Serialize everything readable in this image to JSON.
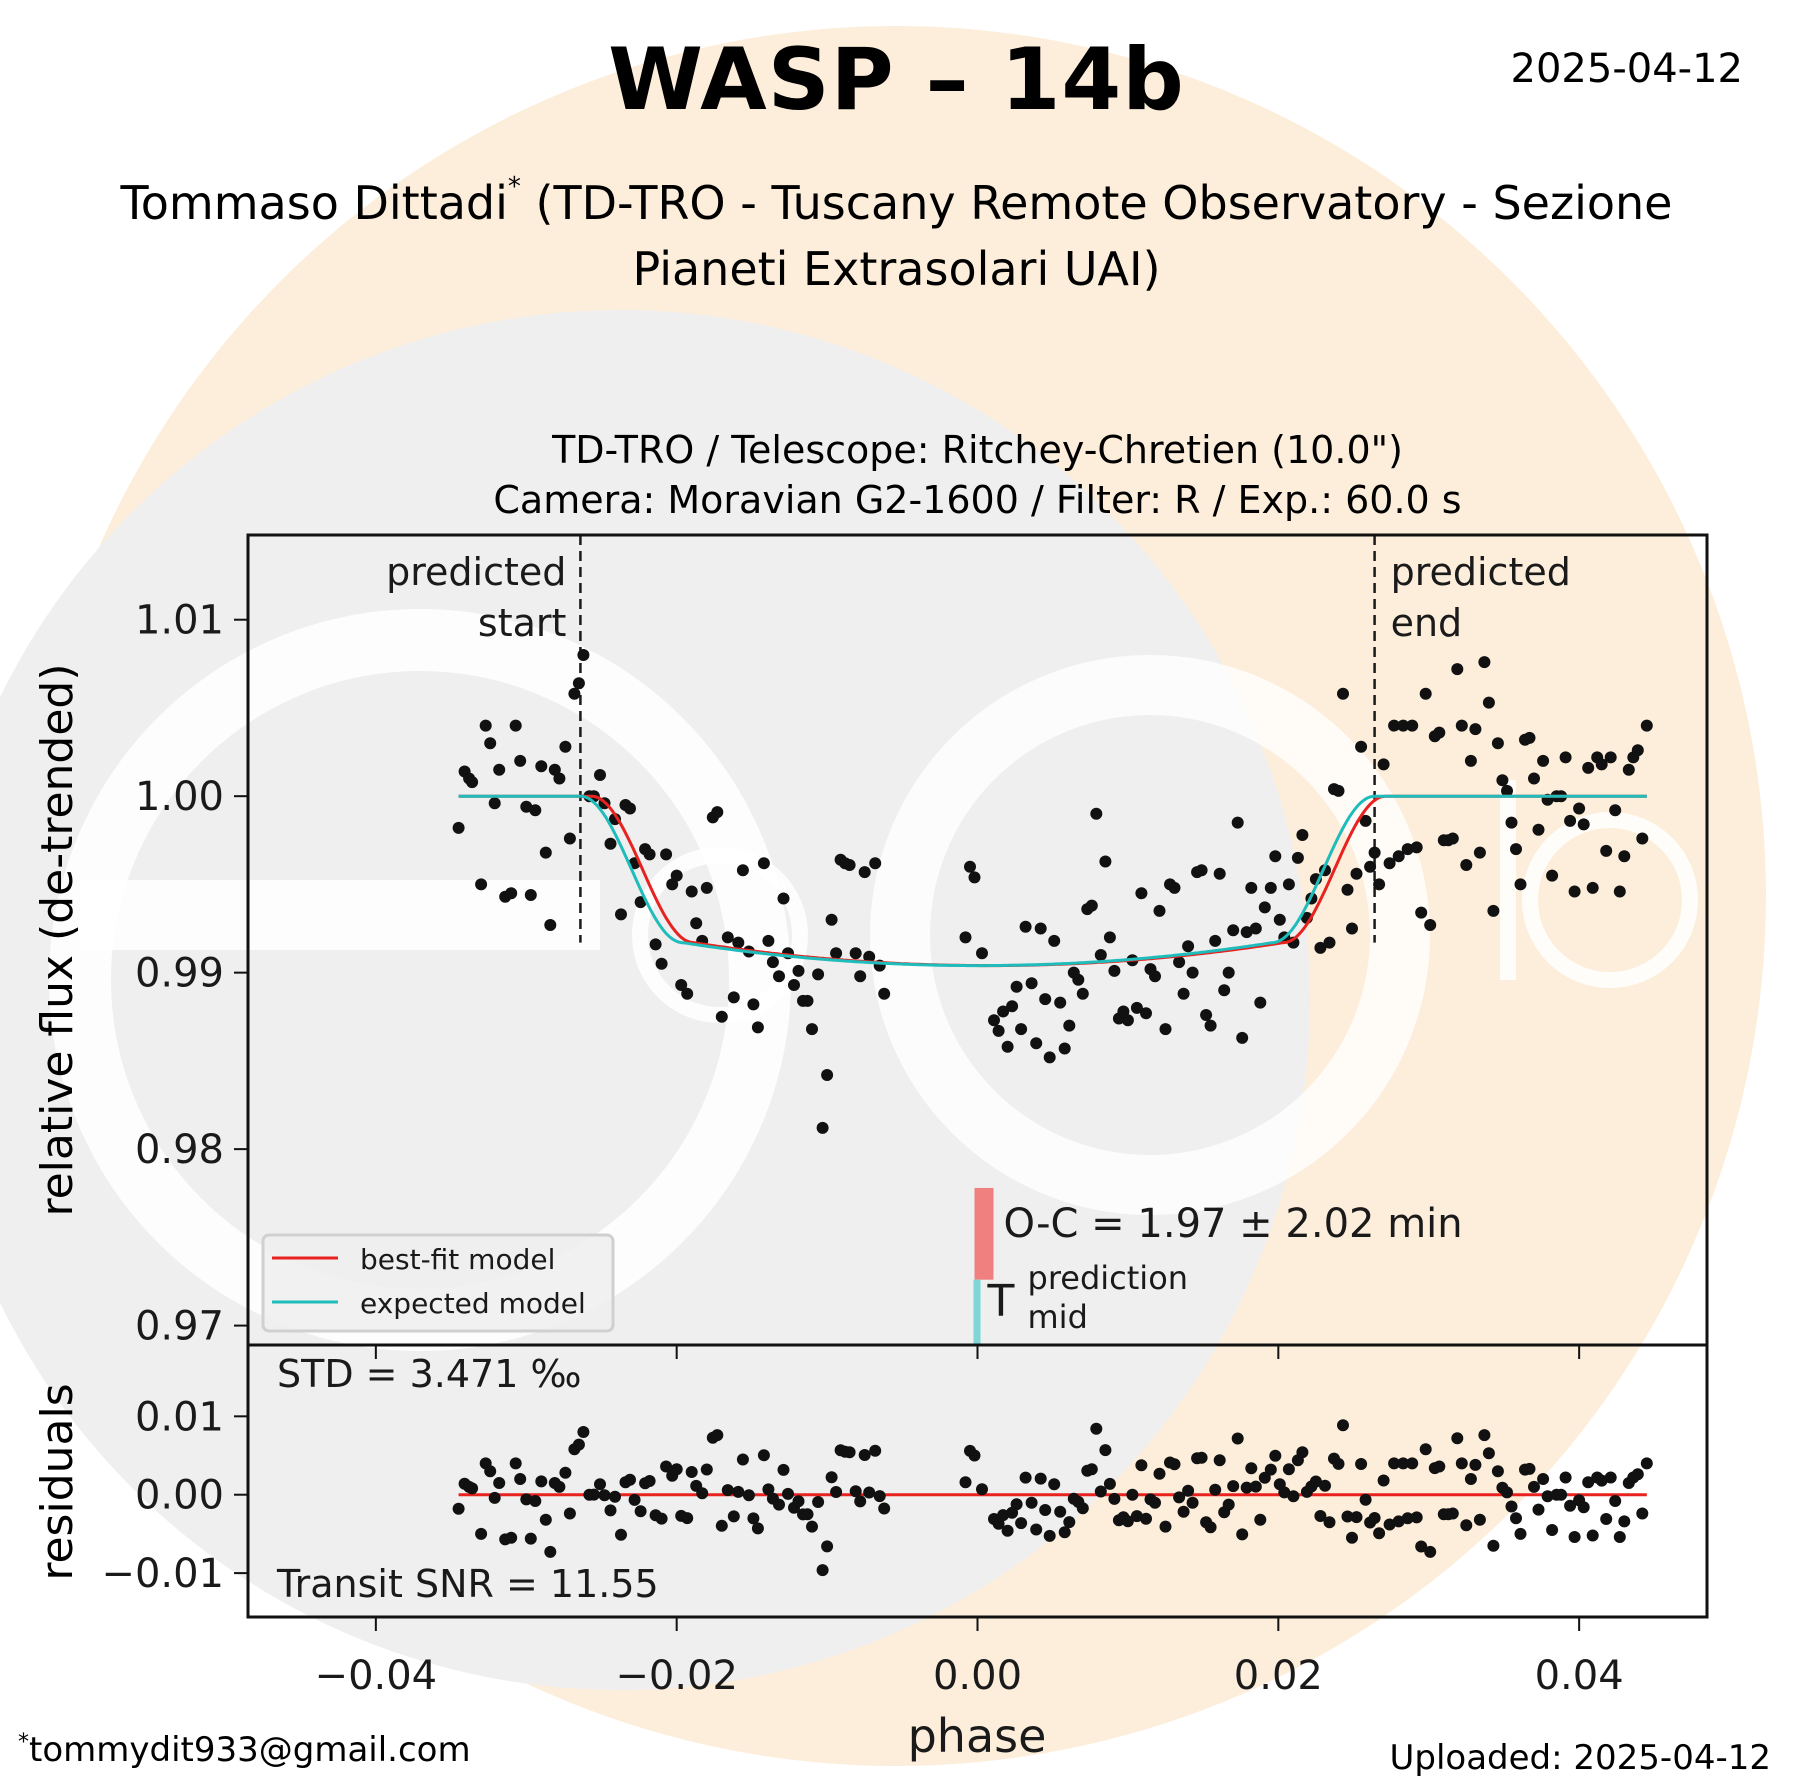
{
  "header": {
    "title": "WASP – 14b",
    "date": "2025-04-12",
    "observer_name": "Tommaso Dittadi",
    "observer_marker": "*",
    "observer_affiliation_line1": "(TD-TRO - Tuscany Remote Observatory - Sezione",
    "observer_affiliation_line2": "Pianeti Extrasolari UAI)",
    "subtitle_line1": "TD-TRO / Telescope: Ritchey-Chretien (10.0\")",
    "subtitle_line2": "Camera: Moravian G2-1600 / Filter: R / Exp.: 60.0 s"
  },
  "footer": {
    "email_marker": "*",
    "email": "tommydit933@gmail.com",
    "uploaded": "Uploaded: 2025-04-12"
  },
  "colors": {
    "best_fit": "#e8221e",
    "expected": "#1fbcbc",
    "oc_bar": "#f08080",
    "tmid_bar": "#7fd6d6",
    "points": "#111111",
    "bg_panel": "#efefef",
    "bg_orange": "#fdeedb"
  },
  "chart_data": [
    {
      "id": "lightcurve",
      "type": "scatter",
      "xlabel": "phase",
      "ylabel": "relative flux (de-trended)",
      "xlim": [
        -0.0485,
        0.0485
      ],
      "ylim": [
        0.9689,
        1.0148
      ],
      "xticks": [
        -0.04,
        -0.02,
        0.0,
        0.02,
        0.04
      ],
      "xtick_labels": [
        "−0.04",
        "−0.02",
        "0.00",
        "0.02",
        "0.04"
      ],
      "yticks": [
        0.97,
        0.98,
        0.99,
        1.0,
        1.01
      ],
      "ytick_labels": [
        "0.97",
        "0.98",
        "0.99",
        "1.00",
        "1.01"
      ],
      "legend": {
        "position": "lower-left",
        "entries": [
          "best-fit model",
          "expected model"
        ]
      },
      "annotations": {
        "predicted_start": {
          "label_line1": "predicted",
          "label_line2": "start",
          "phase": -0.0264
        },
        "predicted_end": {
          "label_line1": "predicted",
          "label_line2": "end",
          "phase": 0.0264
        },
        "oc_text": "O-C = 1.97 ± 2.02 min",
        "tmid_main": "T",
        "tmid_sup": "prediction",
        "tmid_sub": "mid",
        "oc_bar_range": [
          0.9726,
          0.9778
        ],
        "tmid_bar_range": [
          0.9689,
          0.9726
        ],
        "oc_phase": 0.0
      },
      "model": {
        "phase_range": [
          -0.0345,
          0.0445
        ],
        "baseline": 1.0,
        "depth_center": 0.9904,
        "expected_t1": -0.0264,
        "expected_t2": -0.0196,
        "expected_t3": 0.0196,
        "expected_t4": 0.0264,
        "bestfit_shift": 0.00073
      },
      "points": [
        [
          -0.0345,
          0.9982
        ],
        [
          -0.0341,
          1.0014
        ],
        [
          -0.0338,
          1.001
        ],
        [
          -0.0336,
          1.0008
        ],
        [
          -0.033,
          0.995
        ],
        [
          -0.0327,
          1.004
        ],
        [
          -0.0324,
          1.003
        ],
        [
          -0.0321,
          0.9996
        ],
        [
          -0.0318,
          1.0015
        ],
        [
          -0.0314,
          0.9943
        ],
        [
          -0.031,
          0.9945
        ],
        [
          -0.0307,
          1.004
        ],
        [
          -0.0304,
          1.002
        ],
        [
          -0.03,
          0.9994
        ],
        [
          -0.0297,
          0.9944
        ],
        [
          -0.0294,
          0.9992
        ],
        [
          -0.029,
          1.0017
        ],
        [
          -0.0287,
          0.9968
        ],
        [
          -0.0284,
          0.9927
        ],
        [
          -0.0281,
          1.0015
        ],
        [
          -0.0278,
          1.001
        ],
        [
          -0.0274,
          1.0028
        ],
        [
          -0.0271,
          0.9976
        ],
        [
          -0.0268,
          1.0058
        ],
        [
          -0.0265,
          1.0064
        ],
        [
          -0.0262,
          1.008
        ],
        [
          -0.0258,
          1.0
        ],
        [
          -0.0255,
          1.0
        ],
        [
          -0.0251,
          1.0012
        ],
        [
          -0.0248,
          0.9996
        ],
        [
          -0.0244,
          0.9973
        ],
        [
          -0.0241,
          0.9987
        ],
        [
          -0.0237,
          0.9933
        ],
        [
          -0.0234,
          0.9995
        ],
        [
          -0.0231,
          0.9993
        ],
        [
          -0.0228,
          0.9962
        ],
        [
          -0.0224,
          0.994
        ],
        [
          -0.0221,
          0.997
        ],
        [
          -0.0218,
          0.9967
        ],
        [
          -0.0214,
          0.9916
        ],
        [
          -0.021,
          0.9905
        ],
        [
          -0.0207,
          0.9967
        ],
        [
          -0.0203,
          0.995
        ],
        [
          -0.02,
          0.9955
        ],
        [
          -0.0197,
          0.9893
        ],
        [
          -0.0193,
          0.9888
        ],
        [
          -0.019,
          0.9946
        ],
        [
          -0.0187,
          0.9928
        ],
        [
          -0.0183,
          0.9918
        ],
        [
          -0.018,
          0.9948
        ],
        [
          -0.0176,
          0.9988
        ],
        [
          -0.0173,
          0.9991
        ],
        [
          -0.017,
          0.9875
        ],
        [
          -0.0166,
          0.992
        ],
        [
          -0.0162,
          0.9886
        ],
        [
          -0.0159,
          0.9917
        ],
        [
          -0.0156,
          0.9958
        ],
        [
          -0.0152,
          0.9912
        ],
        [
          -0.0149,
          0.9882
        ],
        [
          -0.0146,
          0.9869
        ],
        [
          -0.0142,
          0.9962
        ],
        [
          -0.0139,
          0.9918
        ],
        [
          -0.0136,
          0.9906
        ],
        [
          -0.0132,
          0.9898
        ],
        [
          -0.0129,
          0.9942
        ],
        [
          -0.0126,
          0.9911
        ],
        [
          -0.0122,
          0.9893
        ],
        [
          -0.0119,
          0.9901
        ],
        [
          -0.0116,
          0.9884
        ],
        [
          -0.0113,
          0.9884
        ],
        [
          -0.011,
          0.9868
        ],
        [
          -0.0106,
          0.9899
        ],
        [
          -0.0103,
          0.9812
        ],
        [
          -0.01,
          0.9842
        ],
        [
          -0.0097,
          0.993
        ],
        [
          -0.0094,
          0.9911
        ],
        [
          -0.0091,
          0.9964
        ],
        [
          -0.0088,
          0.9962
        ],
        [
          -0.0085,
          0.9961
        ],
        [
          -0.0081,
          0.9911
        ],
        [
          -0.0078,
          0.9898
        ],
        [
          -0.0075,
          0.9957
        ],
        [
          -0.0072,
          0.9909
        ],
        [
          -0.0068,
          0.9962
        ],
        [
          -0.0065,
          0.9904
        ],
        [
          -0.0062,
          0.9888
        ],
        [
          -0.0005,
          0.996
        ],
        [
          -0.0002,
          0.9954
        ],
        [
          -0.0008,
          0.992
        ],
        [
          0.0003,
          0.9911
        ],
        [
          0.0011,
          0.9873
        ],
        [
          0.0014,
          0.9867
        ],
        [
          0.0017,
          0.9878
        ],
        [
          0.002,
          0.9858
        ],
        [
          0.0023,
          0.9881
        ],
        [
          0.0026,
          0.9892
        ],
        [
          0.0029,
          0.9868
        ],
        [
          0.0032,
          0.9926
        ],
        [
          0.0036,
          0.9894
        ],
        [
          0.0039,
          0.986
        ],
        [
          0.0042,
          0.9925
        ],
        [
          0.0045,
          0.9885
        ],
        [
          0.0048,
          0.9852
        ],
        [
          0.0051,
          0.9918
        ],
        [
          0.0055,
          0.9883
        ],
        [
          0.0058,
          0.9857
        ],
        [
          0.0061,
          0.987
        ],
        [
          0.0064,
          0.99
        ],
        [
          0.0067,
          0.9896
        ],
        [
          0.007,
          0.9888
        ],
        [
          0.0073,
          0.9936
        ],
        [
          0.0076,
          0.9938
        ],
        [
          0.0079,
          0.999
        ],
        [
          0.0082,
          0.991
        ],
        [
          0.0085,
          0.9963
        ],
        [
          0.0088,
          0.992
        ],
        [
          0.0091,
          0.9901
        ],
        [
          0.0094,
          0.9874
        ],
        [
          0.0097,
          0.9878
        ],
        [
          0.01,
          0.9873
        ],
        [
          0.0103,
          0.9907
        ],
        [
          0.0106,
          0.988
        ],
        [
          0.0109,
          0.9945
        ],
        [
          0.0112,
          0.9877
        ],
        [
          0.0115,
          0.9902
        ],
        [
          0.0118,
          0.9898
        ],
        [
          0.0121,
          0.9935
        ],
        [
          0.0125,
          0.9868
        ],
        [
          0.0128,
          0.995
        ],
        [
          0.0131,
          0.9948
        ],
        [
          0.0134,
          0.9906
        ],
        [
          0.0137,
          0.9888
        ],
        [
          0.014,
          0.9915
        ],
        [
          0.0143,
          0.99
        ],
        [
          0.0146,
          0.9957
        ],
        [
          0.0149,
          0.9958
        ],
        [
          0.0152,
          0.9876
        ],
        [
          0.0155,
          0.987
        ],
        [
          0.0158,
          0.9918
        ],
        [
          0.0161,
          0.9956
        ],
        [
          0.0164,
          0.989
        ],
        [
          0.0167,
          0.99
        ],
        [
          0.017,
          0.9924
        ],
        [
          0.0173,
          0.9985
        ],
        [
          0.0176,
          0.9863
        ],
        [
          0.0179,
          0.9923
        ],
        [
          0.0182,
          0.9948
        ],
        [
          0.0185,
          0.9925
        ],
        [
          0.0188,
          0.9883
        ],
        [
          0.0191,
          0.9937
        ],
        [
          0.0195,
          0.9948
        ],
        [
          0.0198,
          0.9966
        ],
        [
          0.0201,
          0.993
        ],
        [
          0.0204,
          0.992
        ],
        [
          0.0207,
          0.995
        ],
        [
          0.021,
          0.9917
        ],
        [
          0.0213,
          0.9965
        ],
        [
          0.0216,
          0.9978
        ],
        [
          0.0219,
          0.9931
        ],
        [
          0.0222,
          0.9942
        ],
        [
          0.0225,
          0.9953
        ],
        [
          0.0228,
          0.9914
        ],
        [
          0.0231,
          0.9958
        ],
        [
          0.0234,
          0.9917
        ],
        [
          0.0237,
          1.0004
        ],
        [
          0.024,
          1.0003
        ],
        [
          0.0243,
          1.0058
        ],
        [
          0.0246,
          0.9947
        ],
        [
          0.0249,
          0.9925
        ],
        [
          0.0252,
          0.9956
        ],
        [
          0.0255,
          1.0028
        ],
        [
          0.0258,
          0.9986
        ],
        [
          0.0261,
          0.996
        ],
        [
          0.0264,
          0.9968
        ],
        [
          0.0267,
          0.995
        ],
        [
          0.027,
          1.0018
        ],
        [
          0.0274,
          0.9962
        ],
        [
          0.0277,
          1.004
        ],
        [
          0.028,
          0.9966
        ],
        [
          0.0283,
          1.004
        ],
        [
          0.0286,
          0.997
        ],
        [
          0.0289,
          1.004
        ],
        [
          0.0292,
          0.9971
        ],
        [
          0.0295,
          0.9934
        ],
        [
          0.0298,
          1.0058
        ],
        [
          0.0301,
          0.9927
        ],
        [
          0.0304,
          1.0034
        ],
        [
          0.0307,
          1.0036
        ],
        [
          0.031,
          0.9975
        ],
        [
          0.0313,
          0.9975
        ],
        [
          0.0316,
          0.9976
        ],
        [
          0.0319,
          1.0072
        ],
        [
          0.0322,
          1.004
        ],
        [
          0.0325,
          0.9961
        ],
        [
          0.0328,
          1.002
        ],
        [
          0.0331,
          1.0038
        ],
        [
          0.0334,
          0.9968
        ],
        [
          0.0337,
          1.0076
        ],
        [
          0.034,
          1.0053
        ],
        [
          0.0343,
          0.9935
        ],
        [
          0.0346,
          1.003
        ],
        [
          0.0349,
          1.0009
        ],
        [
          0.0352,
          1.0003
        ],
        [
          0.0355,
          0.9985
        ],
        [
          0.0358,
          0.997
        ],
        [
          0.0361,
          0.995
        ],
        [
          0.0364,
          1.0032
        ],
        [
          0.0367,
          1.0033
        ],
        [
          0.037,
          1.001
        ],
        [
          0.0373,
          0.9981
        ],
        [
          0.0376,
          1.002
        ],
        [
          0.0379,
          0.9998
        ],
        [
          0.0382,
          0.9955
        ],
        [
          0.0385,
          1.0
        ],
        [
          0.0388,
          1.0
        ],
        [
          0.0391,
          1.0022
        ],
        [
          0.0394,
          0.9986
        ],
        [
          0.0397,
          0.9946
        ],
        [
          0.04,
          0.9993
        ],
        [
          0.0403,
          0.9984
        ],
        [
          0.0406,
          1.0016
        ],
        [
          0.0409,
          0.9948
        ],
        [
          0.0412,
          1.0022
        ],
        [
          0.0415,
          1.0018
        ],
        [
          0.0418,
          0.9969
        ],
        [
          0.0421,
          1.0022
        ],
        [
          0.0424,
          0.9992
        ],
        [
          0.0427,
          0.9946
        ],
        [
          0.043,
          0.9966
        ],
        [
          0.0433,
          1.0015
        ],
        [
          0.0436,
          1.0022
        ],
        [
          0.0439,
          1.0026
        ],
        [
          0.0442,
          0.9976
        ],
        [
          0.0445,
          1.004
        ]
      ]
    },
    {
      "id": "residuals",
      "type": "scatter",
      "xlabel": "phase",
      "ylabel": "residuals",
      "xlim": [
        -0.0485,
        0.0485
      ],
      "ylim": [
        -0.0156,
        0.0191
      ],
      "yticks": [
        -0.01,
        0.0,
        0.01
      ],
      "ytick_labels": [
        "−0.01",
        "0.00",
        "0.01"
      ],
      "std_text": "STD = 3.471 ‰",
      "snr_text": "Transit SNR = 11.55",
      "zero_line": 0.0
    }
  ]
}
